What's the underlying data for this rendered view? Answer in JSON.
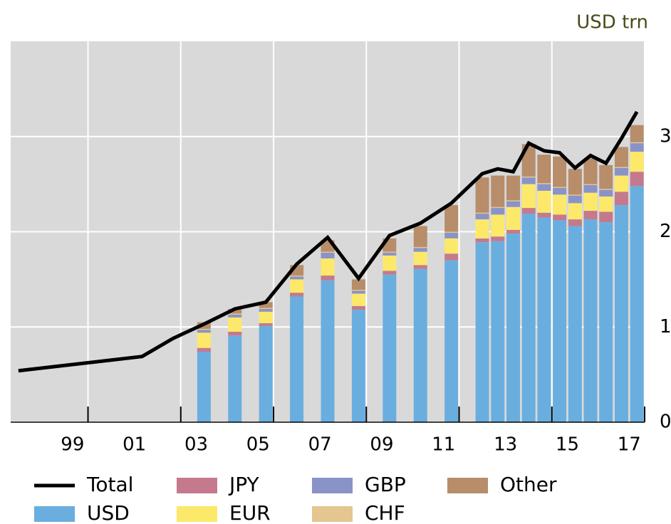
{
  "chart_data": {
    "type": "bar",
    "stacked": true,
    "unit_label": "USD trn",
    "x": [
      1997.25,
      2001.25,
      2002.25,
      2003.25,
      2004.25,
      2005.25,
      2006.25,
      2007.25,
      2008.25,
      2009.25,
      2010.25,
      2011.25,
      2012.25,
      2012.75,
      2013.25,
      2013.75,
      2014.25,
      2014.75,
      2015.25,
      2015.75,
      2016.25,
      2016.75,
      2017.25
    ],
    "series": [
      {
        "name": "Total",
        "type": "line",
        "color": "#000000",
        "values": [
          0.54,
          0.69,
          0.88,
          1.03,
          1.19,
          1.26,
          1.66,
          1.94,
          1.51,
          1.96,
          2.09,
          2.3,
          2.61,
          2.66,
          2.63,
          2.93,
          2.85,
          2.83,
          2.67,
          2.8,
          2.72,
          2.98,
          3.26
        ]
      },
      {
        "name": "USD",
        "color": "#6aaee0",
        "values": [
          null,
          null,
          null,
          0.74,
          0.91,
          1.01,
          1.32,
          1.49,
          1.18,
          1.55,
          1.61,
          1.7,
          1.89,
          1.9,
          1.98,
          2.19,
          2.15,
          2.12,
          2.06,
          2.13,
          2.1,
          2.28,
          2.48
        ]
      },
      {
        "name": "JPY",
        "color": "#c47a8c",
        "values": [
          null,
          null,
          null,
          0.04,
          0.04,
          0.03,
          0.04,
          0.05,
          0.04,
          0.04,
          0.04,
          0.07,
          0.04,
          0.05,
          0.04,
          0.06,
          0.05,
          0.06,
          0.07,
          0.09,
          0.11,
          0.14,
          0.15
        ]
      },
      {
        "name": "EUR",
        "color": "#fce96a",
        "values": [
          null,
          null,
          null,
          0.16,
          0.15,
          0.12,
          0.14,
          0.18,
          0.13,
          0.16,
          0.14,
          0.16,
          0.2,
          0.23,
          0.24,
          0.25,
          0.23,
          0.21,
          0.17,
          0.19,
          0.16,
          0.17,
          0.21
        ]
      },
      {
        "name": "GBP",
        "color": "#8a93c8",
        "values": [
          null,
          null,
          null,
          0.03,
          0.03,
          0.03,
          0.03,
          0.06,
          0.03,
          0.03,
          0.04,
          0.06,
          0.06,
          0.07,
          0.06,
          0.07,
          0.07,
          0.07,
          0.08,
          0.08,
          0.07,
          0.08,
          0.09
        ]
      },
      {
        "name": "CHF",
        "color": "#e5c690",
        "values": [
          null,
          null,
          null,
          0.01,
          0.01,
          0.01,
          0.01,
          0.01,
          0.01,
          0.01,
          0.01,
          0.01,
          0.01,
          0.01,
          0.01,
          0.01,
          0.01,
          0.01,
          0.01,
          0.01,
          0.01,
          0.01,
          0.01
        ]
      },
      {
        "name": "Other",
        "color": "#b78d6a",
        "values": [
          null,
          null,
          null,
          0.07,
          0.05,
          0.06,
          0.11,
          0.12,
          0.11,
          0.14,
          0.22,
          0.28,
          0.37,
          0.33,
          0.26,
          0.34,
          0.3,
          0.32,
          0.27,
          0.27,
          0.25,
          0.21,
          0.18
        ]
      }
    ],
    "xlim": [
      1997,
      2017.5
    ],
    "xticks": [
      {
        "value": 1999,
        "label": "99"
      },
      {
        "value": 2001,
        "label": "01"
      },
      {
        "value": 2003,
        "label": "03"
      },
      {
        "value": 2005,
        "label": "05"
      },
      {
        "value": 2007,
        "label": "07"
      },
      {
        "value": 2009,
        "label": "09"
      },
      {
        "value": 2011,
        "label": "11"
      },
      {
        "value": 2013,
        "label": "13"
      },
      {
        "value": 2015,
        "label": "15"
      },
      {
        "value": 2017,
        "label": "17"
      }
    ],
    "xgrid": [
      1999.5,
      2002.5,
      2005.5,
      2008.5,
      2011.5,
      2014.5,
      2017.5
    ],
    "ylim": [
      0,
      4
    ],
    "yticks": [
      0,
      1,
      2,
      3
    ],
    "grid": true
  }
}
